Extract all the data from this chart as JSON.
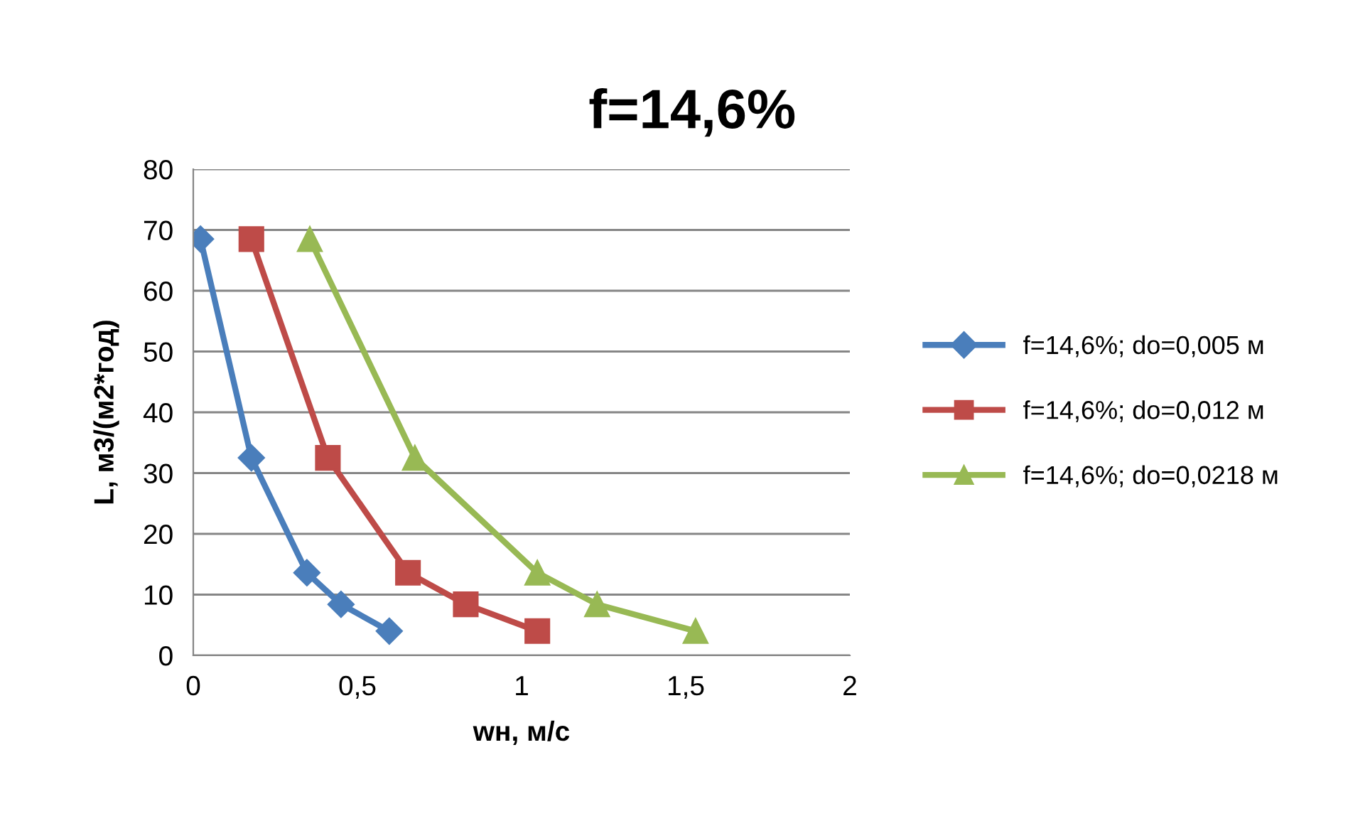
{
  "chart_data": {
    "type": "line",
    "title": "f=14,6%",
    "xlabel": "wн, м/с",
    "ylabel": "L, м3/(м2*год)",
    "series": [
      {
        "name": "f=14,6%; do=0,005 м",
        "color": "#4a7ebb",
        "marker": "diamond",
        "x": [
          0.022,
          0.177,
          0.346,
          0.45,
          0.597
        ],
        "values": [
          68.5,
          32.5,
          13.6,
          8.4,
          4.0
        ]
      },
      {
        "name": "f=14,6%; do=0,012 м",
        "color": "#be4b48",
        "marker": "square",
        "x": [
          0.177,
          0.41,
          0.654,
          0.83,
          1.048
        ],
        "values": [
          68.5,
          32.5,
          13.6,
          8.4,
          4.0
        ]
      },
      {
        "name": "f=14,6%; do=0,0218 м",
        "color": "#98b954",
        "marker": "triangle",
        "x": [
          0.355,
          0.675,
          1.048,
          1.23,
          1.53
        ],
        "values": [
          68.5,
          32.5,
          13.6,
          8.4,
          4.0
        ]
      }
    ],
    "xlim": [
      0,
      2
    ],
    "xticks": [
      0,
      {
        "value": 0.5,
        "label": "0,5"
      },
      1,
      {
        "value": 1.5,
        "label": "1,5"
      },
      2
    ],
    "ylim": [
      0,
      80
    ],
    "yticks": [
      0,
      10,
      20,
      30,
      40,
      50,
      60,
      70,
      80
    ],
    "grid": "y",
    "legend": "right",
    "line_style": "solid"
  }
}
